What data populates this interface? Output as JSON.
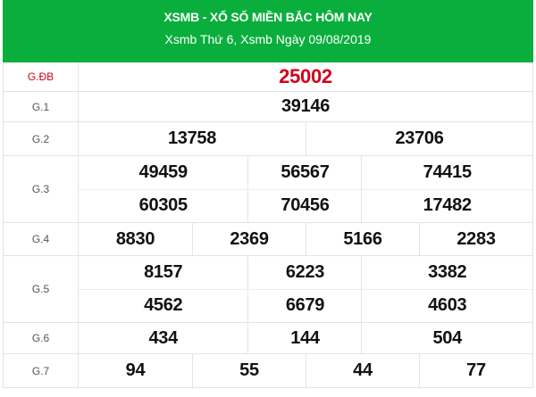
{
  "header": {
    "title": "XSMB - XỔ SỐ MIỀN BẮC HÔM NAY",
    "subtitle": "Xsmb Thứ 6, Xsmb Ngày 09/08/2019",
    "background_color": "#0aae3c"
  },
  "prizes": [
    {
      "label": "G.ĐB",
      "lines": [
        [
          "25002"
        ]
      ]
    },
    {
      "label": "G.1",
      "lines": [
        [
          "39146"
        ]
      ]
    },
    {
      "label": "G.2",
      "lines": [
        [
          "13758",
          "23706"
        ]
      ]
    },
    {
      "label": "G.3",
      "lines": [
        [
          "49459",
          "56567",
          "74415"
        ],
        [
          "60305",
          "70456",
          "17482"
        ]
      ]
    },
    {
      "label": "G.4",
      "lines": [
        [
          "8830",
          "2369",
          "5166",
          "2283"
        ]
      ]
    },
    {
      "label": "G.5",
      "lines": [
        [
          "8157",
          "6223",
          "3382"
        ],
        [
          "4562",
          "6679",
          "4603"
        ]
      ]
    },
    {
      "label": "G.6",
      "lines": [
        [
          "434",
          "144",
          "504"
        ]
      ]
    },
    {
      "label": "G.7",
      "lines": [
        [
          "94",
          "55",
          "44",
          "77"
        ]
      ]
    }
  ],
  "special_color": "#d0021b"
}
